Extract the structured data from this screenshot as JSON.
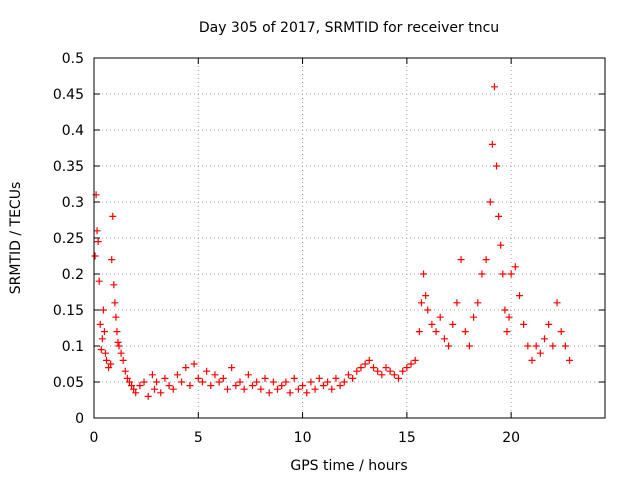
{
  "chart_data": {
    "type": "scatter",
    "title": "Day 305 of 2017, SRMTID for receiver tncu",
    "xlabel": "GPS time / hours",
    "ylabel": "SRMTID / TECUs",
    "xlim": [
      0,
      24.5
    ],
    "ylim": [
      0,
      0.5
    ],
    "x_ticks": [
      0,
      5,
      10,
      15,
      20
    ],
    "x_tick_labels": [
      "0",
      "5",
      "10",
      "15",
      "20"
    ],
    "y_ticks": [
      0,
      0.05,
      0.1,
      0.15,
      0.2,
      0.25,
      0.3,
      0.35,
      0.4,
      0.45,
      0.5
    ],
    "y_tick_labels": [
      "0",
      "0.05",
      "0.1",
      "0.15",
      "0.2",
      "0.25",
      "0.3",
      "0.35",
      "0.4",
      "0.45",
      "0.5"
    ],
    "grid": true,
    "marker": "+",
    "color": "#ff0000",
    "series": [
      {
        "name": "SRMTID",
        "points": [
          [
            0.05,
            0.225
          ],
          [
            0.1,
            0.31
          ],
          [
            0.15,
            0.26
          ],
          [
            0.2,
            0.245
          ],
          [
            0.25,
            0.19
          ],
          [
            0.3,
            0.13
          ],
          [
            0.35,
            0.095
          ],
          [
            0.4,
            0.11
          ],
          [
            0.45,
            0.15
          ],
          [
            0.5,
            0.12
          ],
          [
            0.55,
            0.09
          ],
          [
            0.6,
            0.08
          ],
          [
            0.7,
            0.07
          ],
          [
            0.8,
            0.075
          ],
          [
            0.85,
            0.22
          ],
          [
            0.9,
            0.28
          ],
          [
            0.95,
            0.185
          ],
          [
            1.0,
            0.16
          ],
          [
            1.05,
            0.14
          ],
          [
            1.1,
            0.12
          ],
          [
            1.15,
            0.105
          ],
          [
            1.2,
            0.1
          ],
          [
            1.3,
            0.09
          ],
          [
            1.4,
            0.08
          ],
          [
            1.5,
            0.065
          ],
          [
            1.6,
            0.055
          ],
          [
            1.7,
            0.05
          ],
          [
            1.8,
            0.045
          ],
          [
            1.9,
            0.04
          ],
          [
            2.0,
            0.035
          ],
          [
            2.2,
            0.045
          ],
          [
            2.4,
            0.05
          ],
          [
            2.6,
            0.03
          ],
          [
            2.8,
            0.06
          ],
          [
            2.9,
            0.04
          ],
          [
            3.0,
            0.05
          ],
          [
            3.2,
            0.035
          ],
          [
            3.4,
            0.055
          ],
          [
            3.6,
            0.045
          ],
          [
            3.8,
            0.04
          ],
          [
            4.0,
            0.06
          ],
          [
            4.2,
            0.05
          ],
          [
            4.4,
            0.07
          ],
          [
            4.6,
            0.045
          ],
          [
            4.8,
            0.075
          ],
          [
            5.0,
            0.055
          ],
          [
            5.2,
            0.05
          ],
          [
            5.4,
            0.065
          ],
          [
            5.6,
            0.045
          ],
          [
            5.8,
            0.06
          ],
          [
            6.0,
            0.05
          ],
          [
            6.2,
            0.055
          ],
          [
            6.4,
            0.04
          ],
          [
            6.6,
            0.07
          ],
          [
            6.8,
            0.045
          ],
          [
            7.0,
            0.05
          ],
          [
            7.2,
            0.04
          ],
          [
            7.4,
            0.06
          ],
          [
            7.6,
            0.045
          ],
          [
            7.8,
            0.05
          ],
          [
            8.0,
            0.04
          ],
          [
            8.2,
            0.055
          ],
          [
            8.4,
            0.035
          ],
          [
            8.6,
            0.05
          ],
          [
            8.8,
            0.04
          ],
          [
            9.0,
            0.045
          ],
          [
            9.2,
            0.05
          ],
          [
            9.4,
            0.035
          ],
          [
            9.6,
            0.055
          ],
          [
            9.8,
            0.04
          ],
          [
            10.0,
            0.045
          ],
          [
            10.2,
            0.035
          ],
          [
            10.4,
            0.05
          ],
          [
            10.6,
            0.04
          ],
          [
            10.8,
            0.055
          ],
          [
            11.0,
            0.045
          ],
          [
            11.2,
            0.05
          ],
          [
            11.4,
            0.04
          ],
          [
            11.6,
            0.055
          ],
          [
            11.8,
            0.045
          ],
          [
            12.0,
            0.05
          ],
          [
            12.2,
            0.06
          ],
          [
            12.4,
            0.055
          ],
          [
            12.6,
            0.065
          ],
          [
            12.8,
            0.07
          ],
          [
            13.0,
            0.075
          ],
          [
            13.2,
            0.08
          ],
          [
            13.4,
            0.07
          ],
          [
            13.6,
            0.065
          ],
          [
            13.8,
            0.06
          ],
          [
            14.0,
            0.07
          ],
          [
            14.2,
            0.065
          ],
          [
            14.4,
            0.06
          ],
          [
            14.6,
            0.055
          ],
          [
            14.8,
            0.065
          ],
          [
            15.0,
            0.07
          ],
          [
            15.2,
            0.075
          ],
          [
            15.4,
            0.08
          ],
          [
            15.6,
            0.12
          ],
          [
            15.7,
            0.16
          ],
          [
            15.8,
            0.2
          ],
          [
            15.9,
            0.17
          ],
          [
            16.0,
            0.15
          ],
          [
            16.2,
            0.13
          ],
          [
            16.4,
            0.12
          ],
          [
            16.6,
            0.14
          ],
          [
            16.8,
            0.11
          ],
          [
            17.0,
            0.1
          ],
          [
            17.2,
            0.13
          ],
          [
            17.4,
            0.16
          ],
          [
            17.6,
            0.22
          ],
          [
            17.8,
            0.12
          ],
          [
            18.0,
            0.1
          ],
          [
            18.2,
            0.14
          ],
          [
            18.4,
            0.16
          ],
          [
            18.6,
            0.2
          ],
          [
            18.8,
            0.22
          ],
          [
            19.0,
            0.3
          ],
          [
            19.1,
            0.38
          ],
          [
            19.2,
            0.46
          ],
          [
            19.3,
            0.35
          ],
          [
            19.4,
            0.28
          ],
          [
            19.5,
            0.24
          ],
          [
            19.6,
            0.2
          ],
          [
            19.7,
            0.15
          ],
          [
            19.8,
            0.12
          ],
          [
            19.9,
            0.14
          ],
          [
            20.0,
            0.2
          ],
          [
            20.2,
            0.21
          ],
          [
            20.4,
            0.17
          ],
          [
            20.6,
            0.13
          ],
          [
            20.8,
            0.1
          ],
          [
            21.0,
            0.08
          ],
          [
            21.2,
            0.1
          ],
          [
            21.4,
            0.09
          ],
          [
            21.6,
            0.11
          ],
          [
            21.8,
            0.13
          ],
          [
            22.0,
            0.1
          ],
          [
            22.2,
            0.16
          ],
          [
            22.4,
            0.12
          ],
          [
            22.6,
            0.1
          ],
          [
            22.8,
            0.08
          ]
        ]
      }
    ]
  }
}
